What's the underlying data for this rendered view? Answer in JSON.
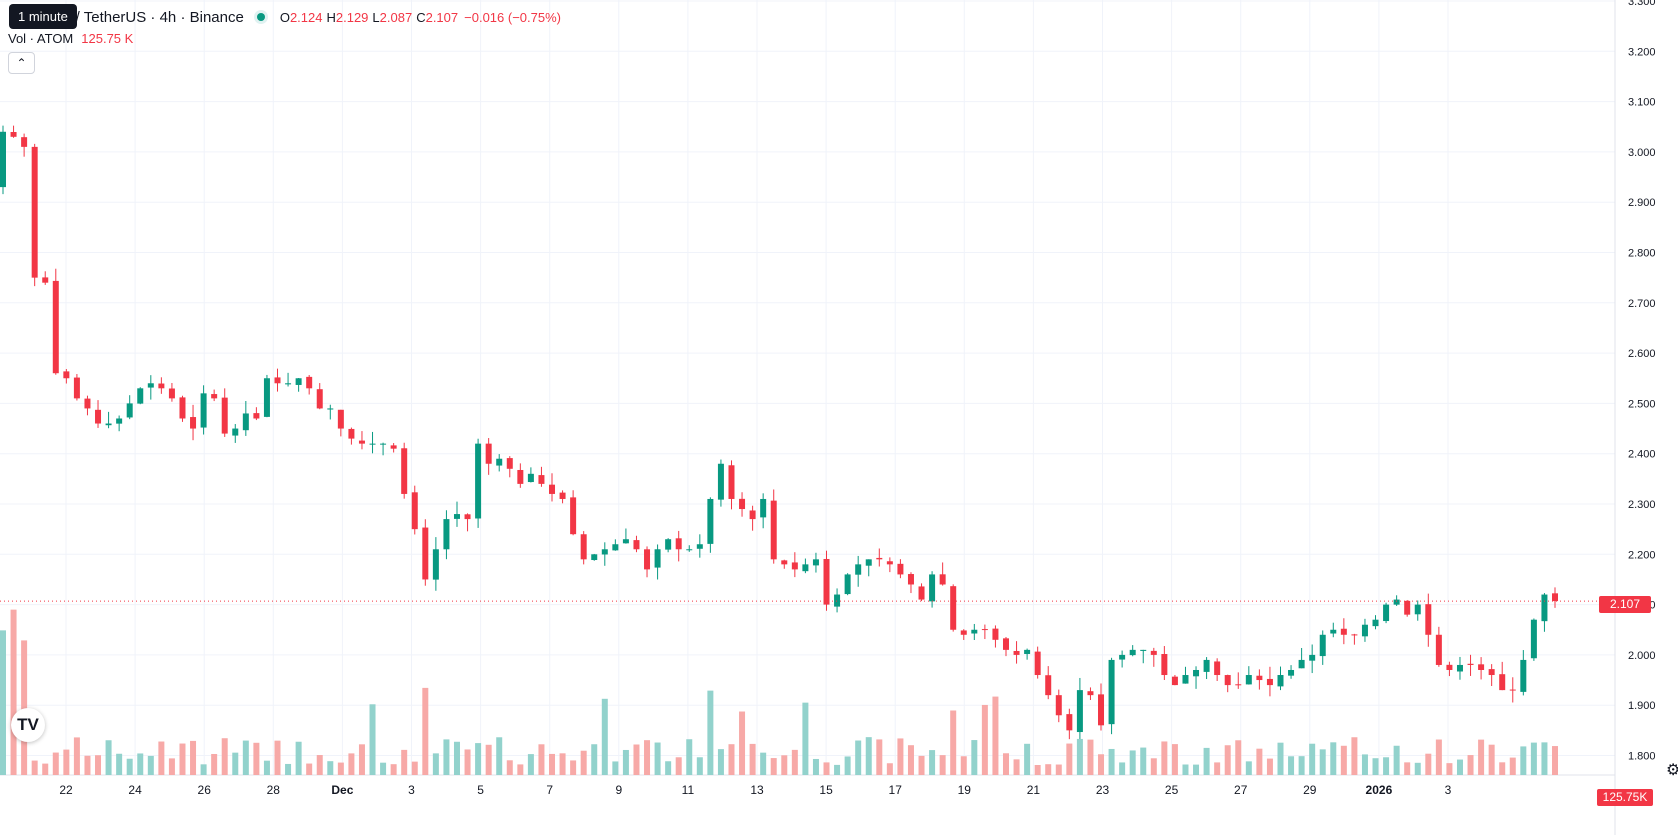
{
  "header": {
    "symbol_title": "s / TetherUS · 4h · Binance",
    "tooltip": "1 minute",
    "ohlc": {
      "o_label": "O",
      "o": "2.124",
      "h_label": "H",
      "h": "2.129",
      "l_label": "L",
      "l": "2.087",
      "c_label": "C",
      "c": "2.107",
      "change": "−0.016 (−0.75%)"
    },
    "volume": {
      "label": "Vol · ATOM",
      "value": "125.75 K"
    },
    "collapse_icon": "chevron-up-icon",
    "logo_text": "TV"
  },
  "price_axis": {
    "labels": [
      "3.300",
      "3.200",
      "3.100",
      "3.000",
      "2.900",
      "2.800",
      "2.700",
      "2.600",
      "2.500",
      "2.400",
      "2.300",
      "2.200",
      "2.100",
      "2.000",
      "1.900",
      "1.800"
    ],
    "current_price": "2.107",
    "current_volume": "125.75K"
  },
  "time_axis": {
    "labels": [
      "22",
      "24",
      "26",
      "28",
      "Dec",
      "3",
      "5",
      "7",
      "9",
      "11",
      "13",
      "15",
      "17",
      "19",
      "21",
      "23",
      "25",
      "27",
      "29",
      "2026",
      "3"
    ],
    "bold": [
      "Dec",
      "2026"
    ]
  },
  "colors": {
    "up": "#089981",
    "down": "#f23645",
    "up_vol": "#92d2cc",
    "down_vol": "#f7a9a7",
    "grid": "#f0f3fa"
  },
  "chart_data": {
    "type": "candlestick",
    "interval": "4h",
    "exchange": "Binance",
    "ylim": [
      1.745,
      3.3
    ],
    "xlim": [
      "Nov 20",
      "Jan 3"
    ],
    "keyframes": [
      [
        0,
        3.04
      ],
      [
        1,
        3.03
      ],
      [
        2,
        3.01
      ],
      [
        3,
        2.75
      ],
      [
        4,
        2.74
      ],
      [
        5,
        2.56
      ],
      [
        6,
        2.55
      ],
      [
        7,
        2.51
      ],
      [
        8,
        2.49
      ],
      [
        9,
        2.46
      ],
      [
        10,
        2.46
      ],
      [
        11,
        2.47
      ],
      [
        12,
        2.5
      ],
      [
        13,
        2.53
      ],
      [
        14,
        2.54
      ],
      [
        15,
        2.53
      ],
      [
        16,
        2.51
      ],
      [
        17,
        2.47
      ],
      [
        18,
        2.45
      ],
      [
        19,
        2.52
      ],
      [
        20,
        2.51
      ],
      [
        21,
        2.44
      ],
      [
        22,
        2.45
      ],
      [
        23,
        2.48
      ],
      [
        24,
        2.47
      ],
      [
        25,
        2.55
      ],
      [
        26,
        2.54
      ],
      [
        27,
        2.54
      ],
      [
        28,
        2.55
      ],
      [
        29,
        2.53
      ],
      [
        30,
        2.49
      ],
      [
        31,
        2.49
      ],
      [
        32,
        2.45
      ],
      [
        33,
        2.43
      ],
      [
        34,
        2.42
      ],
      [
        35,
        2.42
      ],
      [
        36,
        2.42
      ],
      [
        37,
        2.41
      ],
      [
        38,
        2.32
      ],
      [
        39,
        2.25
      ],
      [
        40,
        2.15
      ],
      [
        41,
        2.21
      ],
      [
        42,
        2.27
      ],
      [
        43,
        2.28
      ],
      [
        44,
        2.27
      ],
      [
        45,
        2.42
      ],
      [
        46,
        2.38
      ],
      [
        47,
        2.39
      ],
      [
        48,
        2.37
      ],
      [
        49,
        2.34
      ],
      [
        50,
        2.36
      ],
      [
        51,
        2.34
      ],
      [
        52,
        2.32
      ],
      [
        53,
        2.31
      ],
      [
        54,
        2.24
      ],
      [
        55,
        2.19
      ],
      [
        56,
        2.2
      ],
      [
        57,
        2.21
      ],
      [
        58,
        2.22
      ],
      [
        59,
        2.23
      ],
      [
        60,
        2.21
      ],
      [
        61,
        2.17
      ],
      [
        62,
        2.21
      ],
      [
        63,
        2.23
      ],
      [
        64,
        2.21
      ],
      [
        65,
        2.21
      ],
      [
        66,
        2.22
      ],
      [
        67,
        2.31
      ],
      [
        68,
        2.38
      ],
      [
        69,
        2.31
      ],
      [
        70,
        2.29
      ],
      [
        71,
        2.27
      ],
      [
        72,
        2.31
      ],
      [
        73,
        2.19
      ],
      [
        74,
        2.18
      ],
      [
        75,
        2.17
      ],
      [
        76,
        2.18
      ],
      [
        77,
        2.19
      ],
      [
        78,
        2.1
      ],
      [
        79,
        2.12
      ],
      [
        80,
        2.16
      ],
      [
        81,
        2.18
      ],
      [
        82,
        2.19
      ],
      [
        83,
        2.19
      ],
      [
        84,
        2.18
      ],
      [
        85,
        2.16
      ],
      [
        86,
        2.14
      ],
      [
        87,
        2.11
      ],
      [
        88,
        2.16
      ],
      [
        89,
        2.14
      ],
      [
        90,
        2.05
      ],
      [
        91,
        2.04
      ],
      [
        92,
        2.05
      ],
      [
        93,
        2.05
      ],
      [
        94,
        2.03
      ],
      [
        95,
        2.01
      ],
      [
        96,
        2.0
      ],
      [
        97,
        2.01
      ],
      [
        98,
        1.96
      ],
      [
        99,
        1.92
      ],
      [
        100,
        1.88
      ],
      [
        101,
        1.85
      ],
      [
        102,
        1.93
      ],
      [
        103,
        1.92
      ],
      [
        104,
        1.86
      ],
      [
        105,
        1.99
      ],
      [
        106,
        2.0
      ],
      [
        107,
        2.01
      ],
      [
        108,
        2.01
      ],
      [
        109,
        2.0
      ],
      [
        110,
        1.96
      ],
      [
        111,
        1.94
      ],
      [
        112,
        1.96
      ],
      [
        113,
        1.97
      ],
      [
        114,
        1.99
      ],
      [
        115,
        1.96
      ],
      [
        116,
        1.94
      ],
      [
        117,
        1.94
      ],
      [
        118,
        1.96
      ],
      [
        119,
        1.95
      ],
      [
        120,
        1.94
      ],
      [
        121,
        1.96
      ],
      [
        122,
        1.97
      ],
      [
        123,
        1.99
      ],
      [
        124,
        2.0
      ],
      [
        125,
        2.04
      ],
      [
        126,
        2.05
      ],
      [
        127,
        2.04
      ],
      [
        128,
        2.04
      ],
      [
        129,
        2.06
      ],
      [
        130,
        2.07
      ],
      [
        131,
        2.1
      ],
      [
        132,
        2.11
      ],
      [
        133,
        2.08
      ],
      [
        134,
        2.1
      ],
      [
        135,
        2.04
      ],
      [
        136,
        1.98
      ],
      [
        137,
        1.97
      ],
      [
        138,
        1.98
      ],
      [
        139,
        1.98
      ],
      [
        140,
        1.97
      ],
      [
        141,
        1.96
      ],
      [
        142,
        1.93
      ],
      [
        143,
        1.93
      ],
      [
        144,
        1.99
      ],
      [
        145,
        2.07
      ],
      [
        146,
        2.12
      ],
      [
        147,
        2.107
      ]
    ],
    "candle_count": 148
  }
}
